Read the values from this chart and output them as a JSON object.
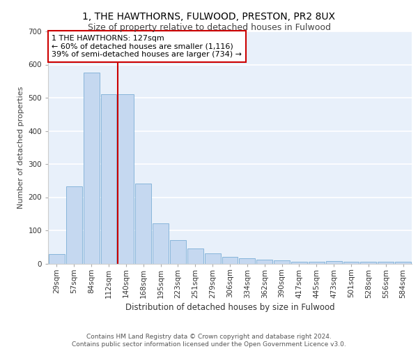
{
  "title1": "1, THE HAWTHORNS, FULWOOD, PRESTON, PR2 8UX",
  "title2": "Size of property relative to detached houses in Fulwood",
  "xlabel": "Distribution of detached houses by size in Fulwood",
  "ylabel": "Number of detached properties",
  "categories": [
    "29sqm",
    "57sqm",
    "84sqm",
    "112sqm",
    "140sqm",
    "168sqm",
    "195sqm",
    "223sqm",
    "251sqm",
    "279sqm",
    "306sqm",
    "334sqm",
    "362sqm",
    "390sqm",
    "417sqm",
    "445sqm",
    "473sqm",
    "501sqm",
    "528sqm",
    "556sqm",
    "584sqm"
  ],
  "values": [
    29,
    232,
    575,
    510,
    510,
    242,
    122,
    70,
    45,
    30,
    20,
    15,
    11,
    10,
    6,
    5,
    7,
    5,
    5,
    5,
    6
  ],
  "bar_color": "#c5d8f0",
  "bar_edge_color": "#7aaed6",
  "annotation_text": "1 THE HAWTHORNS: 127sqm\n← 60% of detached houses are smaller (1,116)\n39% of semi-detached houses are larger (734) →",
  "annotation_box_color": "#ffffff",
  "annotation_box_edge_color": "#cc0000",
  "background_color": "#e8f0fa",
  "grid_color": "#ffffff",
  "ylim": [
    0,
    700
  ],
  "yticks": [
    0,
    100,
    200,
    300,
    400,
    500,
    600,
    700
  ],
  "footer_text": "Contains HM Land Registry data © Crown copyright and database right 2024.\nContains public sector information licensed under the Open Government Licence v3.0.",
  "title1_fontsize": 10,
  "title2_fontsize": 9,
  "xlabel_fontsize": 8.5,
  "ylabel_fontsize": 8,
  "tick_fontsize": 7.5,
  "annotation_fontsize": 8,
  "footer_fontsize": 6.5
}
